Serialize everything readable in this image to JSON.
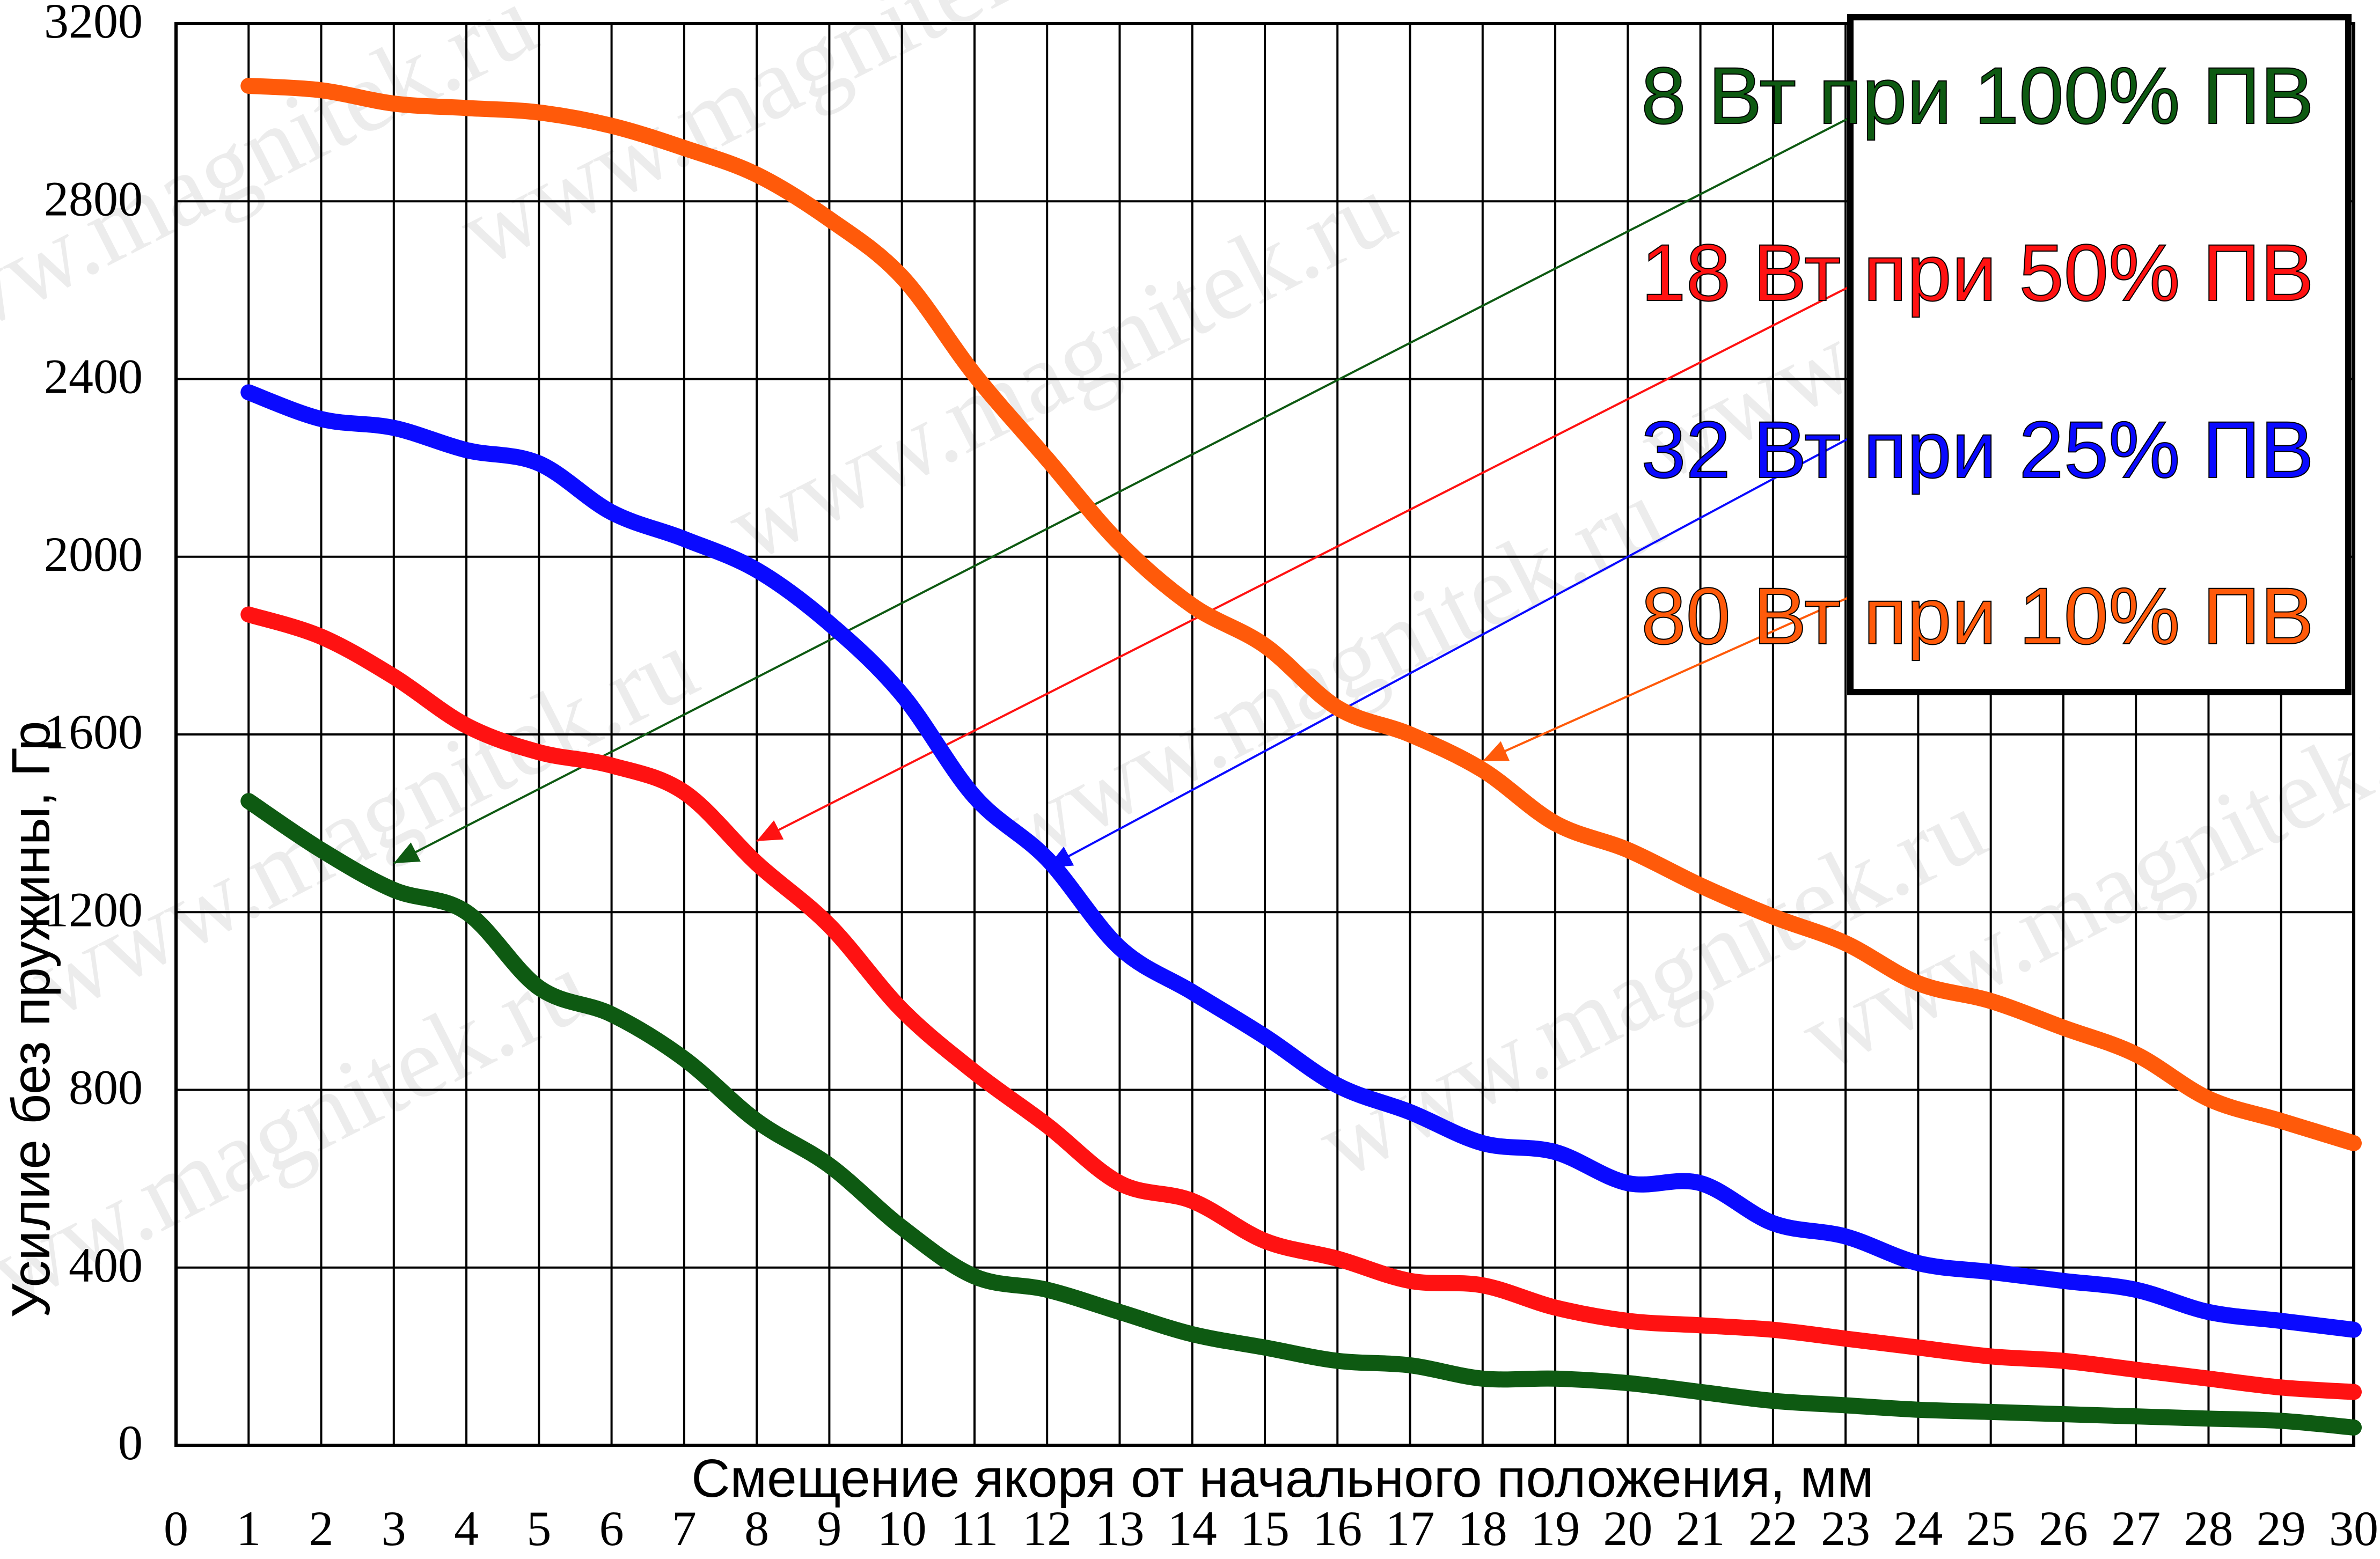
{
  "chart_data": {
    "type": "line",
    "xlabel": "Смещение якоря от начального положения, мм",
    "ylabel": "Усилие без пружины, Гр",
    "xlim": [
      0,
      30
    ],
    "ylim": [
      0,
      3200
    ],
    "x_ticks": [
      0,
      1,
      2,
      3,
      4,
      5,
      6,
      7,
      8,
      9,
      10,
      11,
      12,
      13,
      14,
      15,
      16,
      17,
      18,
      19,
      20,
      21,
      22,
      23,
      24,
      25,
      26,
      27,
      28,
      29,
      30
    ],
    "y_ticks": [
      0,
      400,
      800,
      1200,
      1600,
      2000,
      2400,
      2800,
      3200
    ],
    "grid": true,
    "legend_position": "top-right",
    "x": [
      1,
      2,
      3,
      4,
      5,
      6,
      7,
      8,
      9,
      10,
      11,
      12,
      13,
      14,
      15,
      16,
      17,
      18,
      19,
      20,
      21,
      22,
      23,
      24,
      25,
      26,
      27,
      28,
      29,
      30
    ],
    "series": [
      {
        "name": "8 Вт при 100% ПВ",
        "color": "#0e5a12",
        "values": [
          1450,
          1340,
          1250,
          1200,
          1030,
          970,
          870,
          730,
          630,
          490,
          380,
          350,
          300,
          250,
          220,
          190,
          180,
          150,
          150,
          140,
          120,
          100,
          90,
          80,
          75,
          70,
          65,
          60,
          55,
          40
        ]
      },
      {
        "name": "18 Вт при 50% ПВ",
        "color": "#ff1212",
        "values": [
          1870,
          1820,
          1730,
          1620,
          1560,
          1530,
          1470,
          1310,
          1170,
          980,
          840,
          720,
          590,
          550,
          460,
          420,
          370,
          360,
          310,
          280,
          270,
          260,
          240,
          220,
          200,
          190,
          170,
          150,
          130,
          120
        ]
      },
      {
        "name": "32 Вт при 25% ПВ",
        "color": "#0a0aff",
        "values": [
          2370,
          2310,
          2290,
          2240,
          2210,
          2100,
          2040,
          1970,
          1850,
          1690,
          1460,
          1320,
          1120,
          1020,
          920,
          810,
          750,
          680,
          660,
          590,
          590,
          500,
          470,
          410,
          390,
          370,
          350,
          300,
          280,
          260
        ]
      },
      {
        "name": "80 Вт при 10% ПВ",
        "color": "#ff5a0a",
        "values": [
          3060,
          3050,
          3020,
          3010,
          3000,
          2970,
          2920,
          2860,
          2760,
          2630,
          2410,
          2220,
          2030,
          1890,
          1800,
          1660,
          1600,
          1520,
          1400,
          1340,
          1260,
          1190,
          1130,
          1040,
          1000,
          940,
          880,
          780,
          730,
          680
        ]
      }
    ],
    "annotations": [
      {
        "series_index": 0,
        "target_x": 3,
        "target_y": 1310,
        "from_x": 23.2,
        "from_y": 3000
      },
      {
        "series_index": 1,
        "target_x": 8,
        "target_y": 1360,
        "from_x": 23.2,
        "from_y": 2620
      },
      {
        "series_index": 2,
        "target_x": 12,
        "target_y": 1300,
        "from_x": 23.2,
        "from_y": 2280
      },
      {
        "series_index": 3,
        "target_x": 18,
        "target_y": 1540,
        "from_x": 23.2,
        "from_y": 1920
      }
    ],
    "watermark": "www.magnitek.ru"
  }
}
